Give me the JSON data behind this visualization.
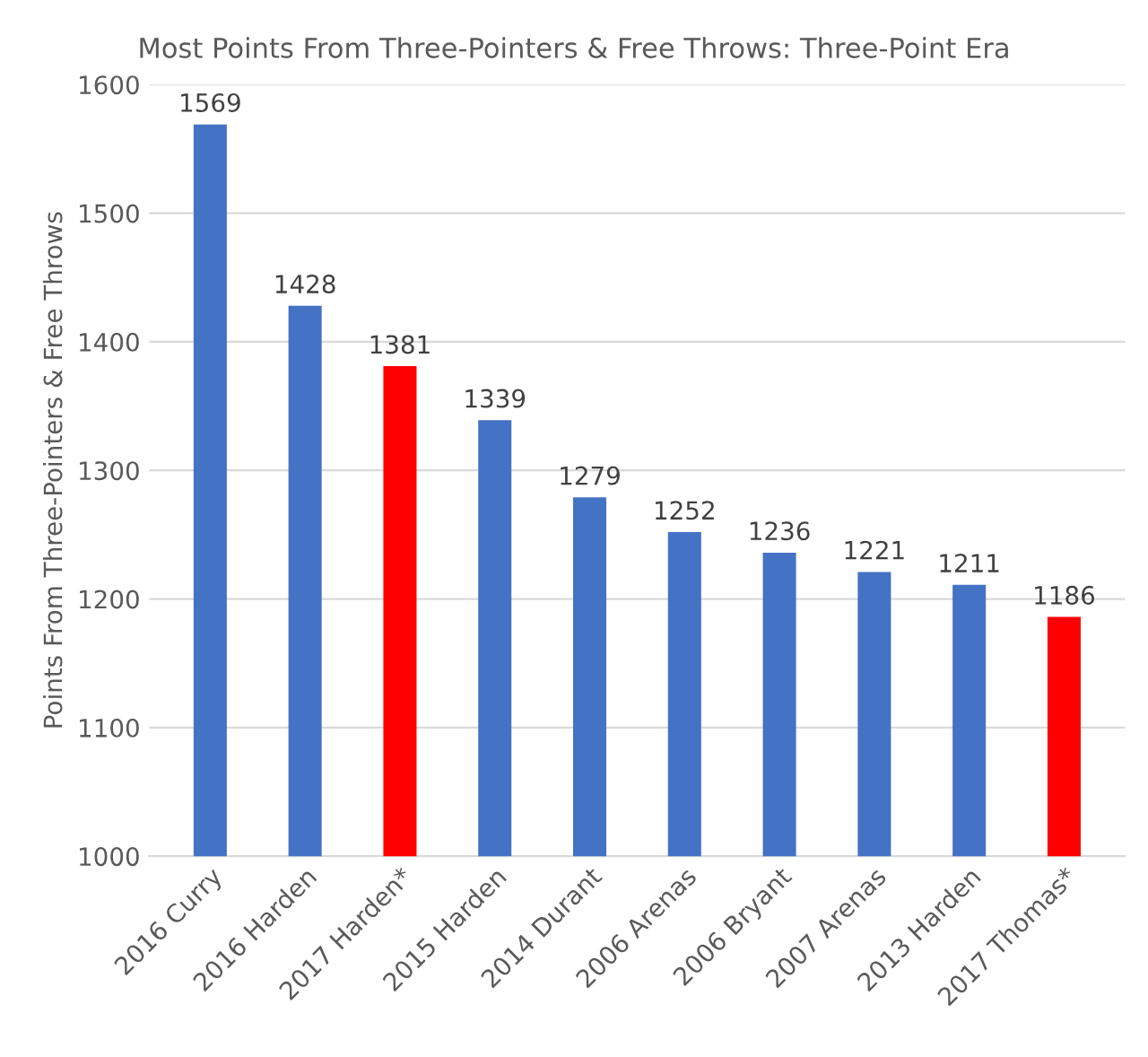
{
  "chart_data": {
    "type": "bar",
    "title": "Most Points From Three-Pointers & Free Throws: Three-Point Era",
    "ylabel": "Points From Three-Pointers & Free Throws",
    "categories": [
      "2016 Curry",
      "2016 Harden",
      "2017 Harden*",
      "2015 Harden",
      "2014 Durant",
      "2006 Arenas",
      "2006 Bryant",
      "2007 Arenas",
      "2013 Harden",
      "2017 Thomas*"
    ],
    "values": [
      1569,
      1428,
      1381,
      1339,
      1279,
      1252,
      1236,
      1221,
      1211,
      1186
    ],
    "colors": [
      "#4472c4",
      "#4472c4",
      "#ff0000",
      "#4472c4",
      "#4472c4",
      "#4472c4",
      "#4472c4",
      "#4472c4",
      "#4472c4",
      "#ff0000"
    ],
    "ylim": [
      1000,
      1600
    ],
    "yticks": [
      1000,
      1100,
      1200,
      1300,
      1400,
      1500,
      1600
    ],
    "grid": "y",
    "data_labels": true
  }
}
